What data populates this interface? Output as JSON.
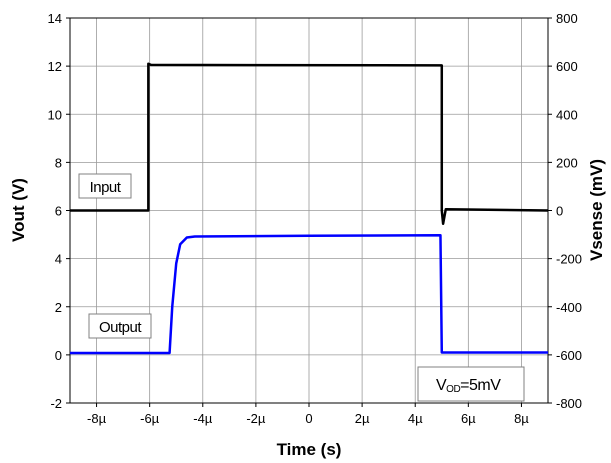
{
  "chart_data": {
    "type": "line",
    "title": "",
    "xlabel": "Time (s)",
    "ylabel": "Vout (V)",
    "y2label": "Vsense (mV)",
    "xlim": [
      -9e-06,
      9e-06
    ],
    "ylim": [
      -2,
      14
    ],
    "y2lim": [
      -800,
      800
    ],
    "grid": true,
    "x_ticks": [
      {
        "value": -8e-06,
        "label": "-8µ"
      },
      {
        "value": -6e-06,
        "label": "-6µ"
      },
      {
        "value": -4e-06,
        "label": "-4µ"
      },
      {
        "value": -2e-06,
        "label": "-2µ"
      },
      {
        "value": 0,
        "label": "0"
      },
      {
        "value": 2e-06,
        "label": "2µ"
      },
      {
        "value": 4e-06,
        "label": "4µ"
      },
      {
        "value": 6e-06,
        "label": "6µ"
      },
      {
        "value": 8e-06,
        "label": "8µ"
      }
    ],
    "y_ticks": [
      {
        "value": -2,
        "label": "-2"
      },
      {
        "value": 0,
        "label": "0"
      },
      {
        "value": 2,
        "label": "2"
      },
      {
        "value": 4,
        "label": "4"
      },
      {
        "value": 6,
        "label": "6"
      },
      {
        "value": 8,
        "label": "8"
      },
      {
        "value": 10,
        "label": "10"
      },
      {
        "value": 12,
        "label": "12"
      },
      {
        "value": 14,
        "label": "14"
      }
    ],
    "y2_ticks": [
      {
        "value": -800,
        "label": "-800"
      },
      {
        "value": -600,
        "label": "-600"
      },
      {
        "value": -400,
        "label": "-400"
      },
      {
        "value": -200,
        "label": "-200"
      },
      {
        "value": 0,
        "label": "0"
      },
      {
        "value": 200,
        "label": "200"
      },
      {
        "value": 400,
        "label": "400"
      },
      {
        "value": 600,
        "label": "600"
      },
      {
        "value": 800,
        "label": "800"
      }
    ],
    "series": [
      {
        "name": "Input",
        "axis": "right",
        "color": "#000000",
        "x": [
          -9e-06,
          -6.05e-06,
          -6.05e-06,
          -5.95e-06,
          5e-06,
          5e-06,
          5.05e-06,
          5.15e-06,
          9e-06
        ],
        "y": [
          0,
          0,
          610,
          605,
          603,
          0,
          -55,
          5,
          0
        ]
      },
      {
        "name": "Output",
        "axis": "left",
        "color": "#0000ff",
        "x": [
          -9e-06,
          -5.25e-06,
          -5.15e-06,
          -5e-06,
          -4.85e-06,
          -4.6e-06,
          -4.3e-06,
          0,
          4.95e-06,
          5e-06,
          9e-06
        ],
        "y": [
          0.08,
          0.08,
          2.0,
          3.8,
          4.6,
          4.88,
          4.92,
          4.95,
          4.97,
          0.1,
          0.1
        ]
      }
    ],
    "annotations": {
      "input": "Input",
      "output": "Output",
      "condition_main": "V",
      "condition_sub": "OD",
      "condition_rest": "=5mV"
    }
  }
}
